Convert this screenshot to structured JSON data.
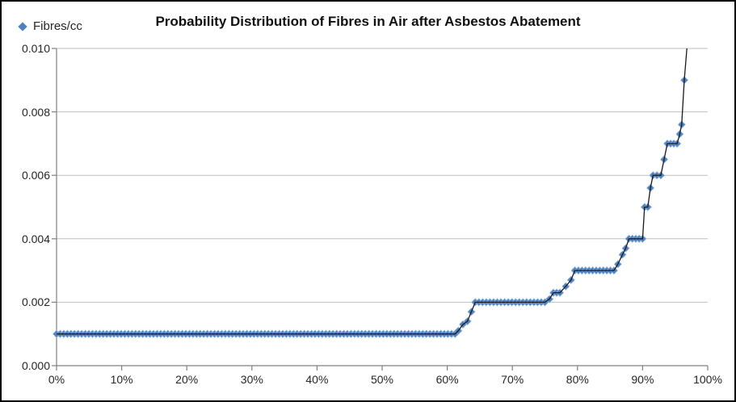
{
  "chart": {
    "title": "Probability Distribution of Fibres in Air after Asbestos Abatement",
    "legend": {
      "label": "Fibres/cc",
      "marker": "diamond-icon",
      "marker_color": "#4F81BD",
      "position": "top-left"
    }
  },
  "chart_data": {
    "type": "scatter",
    "title": "Probability Distribution of Fibres in Air after Asbestos Abatement",
    "series_name": "Fibres/cc",
    "xlabel": "",
    "ylabel": "",
    "x_axis": {
      "min": 0,
      "max": 100,
      "tick_labels": [
        "0%",
        "10%",
        "20%",
        "30%",
        "40%",
        "50%",
        "60%",
        "70%",
        "80%",
        "90%",
        "100%"
      ]
    },
    "y_axis": {
      "min": 0,
      "max": 0.01,
      "tick_labels": [
        "0.000",
        "0.002",
        "0.004",
        "0.006",
        "0.008",
        "0.010"
      ]
    },
    "grid": "horizontal-only",
    "legend_position": "top-left",
    "marker_spacing_pct": 0.55,
    "segments": [
      {
        "from_pct": 0,
        "to_pct": 61.2,
        "value": 0.001
      },
      {
        "at_pct": 61.7,
        "value": 0.0011
      },
      {
        "at_pct": 62.4,
        "value": 0.0013
      },
      {
        "at_pct": 63.1,
        "value": 0.0014
      },
      {
        "at_pct": 63.7,
        "value": 0.0017
      },
      {
        "from_pct": 64.3,
        "to_pct": 75.0,
        "value": 0.002
      },
      {
        "at_pct": 75.7,
        "value": 0.0021
      },
      {
        "from_pct": 76.3,
        "to_pct": 77.3,
        "value": 0.0023
      },
      {
        "at_pct": 78.2,
        "value": 0.0025
      },
      {
        "at_pct": 79.0,
        "value": 0.0027
      },
      {
        "from_pct": 79.6,
        "to_pct": 85.6,
        "value": 0.003
      },
      {
        "at_pct": 86.2,
        "value": 0.0032
      },
      {
        "at_pct": 86.9,
        "value": 0.0035
      },
      {
        "at_pct": 87.4,
        "value": 0.0037
      },
      {
        "from_pct": 87.9,
        "to_pct": 90.0,
        "value": 0.004
      },
      {
        "at_pct": 90.3,
        "value": 0.005
      },
      {
        "at_pct": 90.8,
        "value": 0.005
      },
      {
        "at_pct": 91.2,
        "value": 0.0056
      },
      {
        "from_pct": 91.6,
        "to_pct": 92.8,
        "value": 0.006
      },
      {
        "at_pct": 93.3,
        "value": 0.0065
      },
      {
        "from_pct": 93.8,
        "to_pct": 95.3,
        "value": 0.007
      },
      {
        "at_pct": 95.7,
        "value": 0.0073
      },
      {
        "at_pct": 96.0,
        "value": 0.0076
      },
      {
        "at_pct": 96.4,
        "value": 0.009
      }
    ],
    "line_end": {
      "pct": 96.8,
      "value": 0.01
    },
    "colors": {
      "marker": "#4F81BD",
      "marker_edge": "#8EB4E3",
      "line": "#1a1a1a",
      "gridline": "#BFBFBF",
      "axis": "#808080",
      "text": "#262626"
    }
  }
}
